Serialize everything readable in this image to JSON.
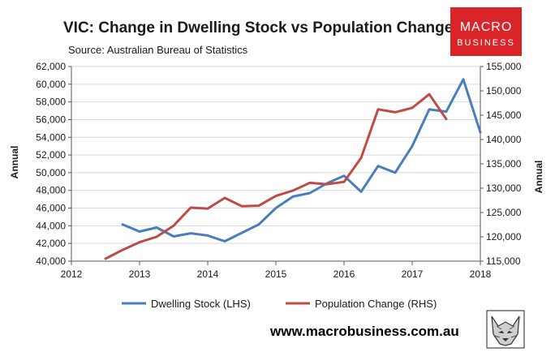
{
  "header": {
    "title": "VIC: Change in Dwelling Stock vs Population Change",
    "subtitle": "Source: Australian Bureau of Statistics"
  },
  "brand": {
    "logo_line1": "MACRO",
    "logo_line2": "BUSINESS",
    "logo_color": "#d9252a",
    "website": "www.macrobusiness.com.au",
    "mascot_icon": "wolf-icon"
  },
  "chart_data": {
    "type": "line",
    "xlim": [
      2012,
      2018
    ],
    "x_ticks": [
      "2012",
      "2013",
      "2014",
      "2015",
      "2016",
      "2017",
      "2018"
    ],
    "left_axis": {
      "label": "Annual",
      "ylim": [
        40000,
        62000
      ],
      "ticks": [
        "40,000",
        "42,000",
        "44,000",
        "46,000",
        "48,000",
        "50,000",
        "52,000",
        "54,000",
        "56,000",
        "58,000",
        "60,000",
        "62,000"
      ]
    },
    "right_axis": {
      "label": "Annual",
      "ylim": [
        115000,
        155000
      ],
      "ticks": [
        "115,000",
        "120,000",
        "125,000",
        "130,000",
        "135,000",
        "140,000",
        "145,000",
        "150,000",
        "155,000"
      ]
    },
    "grid": "horizontal",
    "legend_position": "bottom",
    "series": [
      {
        "name": "Dwelling Stock (LHS)",
        "axis": "left",
        "color": "#4a7ebb",
        "points": [
          {
            "x": "2012-09",
            "y": 44150
          },
          {
            "x": "2012-12",
            "y": 43350
          },
          {
            "x": "2013-03",
            "y": 43800
          },
          {
            "x": "2013-06",
            "y": 42800
          },
          {
            "x": "2013-09",
            "y": 43150
          },
          {
            "x": "2013-12",
            "y": 42900
          },
          {
            "x": "2014-03",
            "y": 42250
          },
          {
            "x": "2014-06",
            "y": 43200
          },
          {
            "x": "2014-09",
            "y": 44150
          },
          {
            "x": "2014-12",
            "y": 46000
          },
          {
            "x": "2015-03",
            "y": 47300
          },
          {
            "x": "2015-06",
            "y": 47700
          },
          {
            "x": "2015-09",
            "y": 48800
          },
          {
            "x": "2015-12",
            "y": 49650
          },
          {
            "x": "2016-03",
            "y": 47850
          },
          {
            "x": "2016-06",
            "y": 50750
          },
          {
            "x": "2016-09",
            "y": 50000
          },
          {
            "x": "2016-12",
            "y": 53000
          },
          {
            "x": "2017-03",
            "y": 57150
          },
          {
            "x": "2017-06",
            "y": 56900
          },
          {
            "x": "2017-09",
            "y": 60550
          },
          {
            "x": "2017-12",
            "y": 54550
          }
        ]
      },
      {
        "name": "Population Change (RHS)",
        "axis": "right",
        "color": "#be4b48",
        "points": [
          {
            "x": "2012-06",
            "y": 115500
          },
          {
            "x": "2012-09",
            "y": 117300
          },
          {
            "x": "2012-12",
            "y": 118900
          },
          {
            "x": "2013-03",
            "y": 120000
          },
          {
            "x": "2013-06",
            "y": 122300
          },
          {
            "x": "2013-09",
            "y": 126000
          },
          {
            "x": "2013-12",
            "y": 125800
          },
          {
            "x": "2014-03",
            "y": 128000
          },
          {
            "x": "2014-06",
            "y": 126300
          },
          {
            "x": "2014-09",
            "y": 126400
          },
          {
            "x": "2014-12",
            "y": 128400
          },
          {
            "x": "2015-03",
            "y": 129500
          },
          {
            "x": "2015-06",
            "y": 131100
          },
          {
            "x": "2015-09",
            "y": 130800
          },
          {
            "x": "2015-12",
            "y": 131300
          },
          {
            "x": "2016-03",
            "y": 136200
          },
          {
            "x": "2016-06",
            "y": 146200
          },
          {
            "x": "2016-09",
            "y": 145600
          },
          {
            "x": "2016-12",
            "y": 146500
          },
          {
            "x": "2017-03",
            "y": 149300
          },
          {
            "x": "2017-06",
            "y": 144200
          }
        ]
      }
    ]
  }
}
